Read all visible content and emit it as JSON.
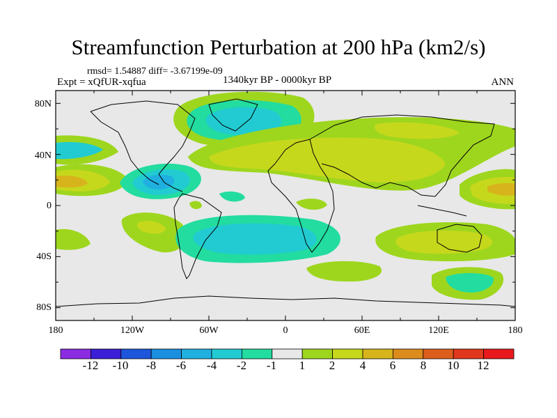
{
  "chart_data": {
    "type": "heatmap",
    "title": "Streamfunction Perturbation at 200 hPa (km2/s)",
    "stats": "rmsd= 1.54887 diff= -3.67199e-09",
    "experiment": "Expt = xQfUR-xqfua",
    "period": "1340kyr BP - 0000kyr BP",
    "season": "ANN",
    "x_ticks": [
      "180",
      "120W",
      "60W",
      "0",
      "60E",
      "120E",
      "180"
    ],
    "x_range": [
      -180,
      180
    ],
    "y_ticks": [
      "80N",
      "40N",
      "0",
      "40S",
      "80S"
    ],
    "y_range": [
      -90,
      90
    ],
    "colorbar_labels": [
      "-12",
      "-10",
      "-8",
      "-6",
      "-4",
      "-2",
      "-1",
      "1",
      "2",
      "4",
      "6",
      "8",
      "10",
      "12"
    ],
    "levels": [
      -12,
      -10,
      -8,
      -6,
      -4,
      -2,
      -1,
      1,
      2,
      4,
      6,
      8,
      10,
      12
    ],
    "palette": [
      "#8b2be2",
      "#3a1fd6",
      "#1e56db",
      "#1a8fe0",
      "#1fb0e0",
      "#22cbd2",
      "#22dca0",
      "#e8e8e8",
      "#9ed61e",
      "#c6d81c",
      "#d8b41c",
      "#dc8c1c",
      "#dd5e1c",
      "#e0381c",
      "#e8191c"
    ]
  }
}
